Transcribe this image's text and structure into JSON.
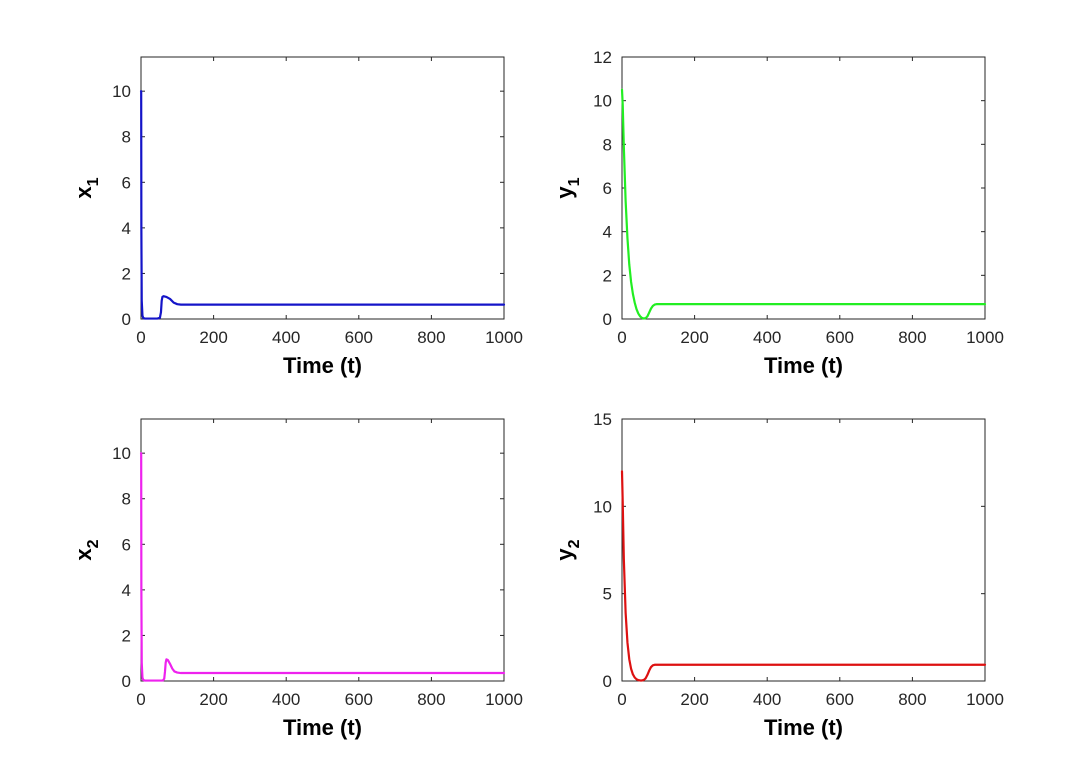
{
  "chart_data": [
    {
      "type": "line",
      "xlabel": "Time (t)",
      "ylabel": "x",
      "ylabel_sub": "1",
      "xlim": [
        0,
        1000
      ],
      "ylim": [
        0,
        11.5
      ],
      "xticks": [
        "0",
        "200",
        "400",
        "600",
        "800",
        "1000"
      ],
      "yticks": [
        "0",
        "2",
        "4",
        "6",
        "8",
        "10"
      ],
      "color": "#1414c8",
      "series": [
        {
          "x": [
            0,
            0.5,
            1,
            2,
            4,
            6,
            10,
            20,
            30,
            45,
            52,
            55,
            57,
            59,
            62,
            70,
            80,
            90,
            100,
            110,
            150,
            200,
            400,
            600,
            800,
            1000
          ],
          "y": [
            10.0,
            10.0,
            4.0,
            0.8,
            0.15,
            0.05,
            0.02,
            0.02,
            0.02,
            0.02,
            0.05,
            0.3,
            0.8,
            0.97,
            1.0,
            0.97,
            0.88,
            0.72,
            0.65,
            0.63,
            0.63,
            0.63,
            0.63,
            0.63,
            0.63,
            0.63
          ]
        }
      ]
    },
    {
      "type": "line",
      "xlabel": "Time (t)",
      "ylabel": "y",
      "ylabel_sub": "1",
      "xlim": [
        0,
        1000
      ],
      "ylim": [
        0,
        12
      ],
      "xticks": [
        "0",
        "200",
        "400",
        "600",
        "800",
        "1000"
      ],
      "yticks": [
        "0",
        "2",
        "4",
        "6",
        "8",
        "10",
        "12"
      ],
      "color": "#22ee22",
      "series": [
        {
          "x": [
            0,
            2,
            5,
            10,
            15,
            20,
            25,
            30,
            35,
            40,
            45,
            50,
            55,
            60,
            65,
            70,
            75,
            80,
            85,
            90,
            95,
            100,
            110,
            130,
            200,
            400,
            600,
            800,
            1000
          ],
          "y": [
            10.5,
            9.8,
            7.9,
            5.4,
            3.7,
            2.5,
            1.7,
            1.15,
            0.75,
            0.45,
            0.25,
            0.12,
            0.05,
            0.02,
            0.04,
            0.12,
            0.3,
            0.48,
            0.6,
            0.66,
            0.68,
            0.68,
            0.68,
            0.68,
            0.68,
            0.68,
            0.68,
            0.68,
            0.68
          ]
        }
      ]
    },
    {
      "type": "line",
      "xlabel": "Time (t)",
      "ylabel": "x",
      "ylabel_sub": "2",
      "xlim": [
        0,
        1000
      ],
      "ylim": [
        0,
        11.5
      ],
      "xticks": [
        "0",
        "200",
        "400",
        "600",
        "800",
        "1000"
      ],
      "yticks": [
        "0",
        "2",
        "4",
        "6",
        "8",
        "10"
      ],
      "color": "#ee22ee",
      "series": [
        {
          "x": [
            0,
            0.5,
            1,
            2,
            4,
            6,
            10,
            20,
            40,
            60,
            64,
            66,
            68,
            70,
            74,
            80,
            86,
            92,
            100,
            110,
            150,
            200,
            400,
            600,
            800,
            1000
          ],
          "y": [
            10.0,
            10.0,
            4.0,
            0.8,
            0.15,
            0.05,
            0.02,
            0.02,
            0.02,
            0.02,
            0.1,
            0.4,
            0.8,
            0.95,
            0.92,
            0.75,
            0.55,
            0.42,
            0.37,
            0.35,
            0.35,
            0.35,
            0.35,
            0.35,
            0.35,
            0.35
          ]
        }
      ]
    },
    {
      "type": "line",
      "xlabel": "Time (t)",
      "ylabel": "y",
      "ylabel_sub": "2",
      "xlim": [
        0,
        1000
      ],
      "ylim": [
        0,
        15
      ],
      "xticks": [
        "0",
        "200",
        "400",
        "600",
        "800",
        "1000"
      ],
      "yticks": [
        "0",
        "5",
        "10",
        "15"
      ],
      "color": "#dd1111",
      "series": [
        {
          "x": [
            0,
            2,
            5,
            10,
            15,
            20,
            25,
            30,
            35,
            40,
            45,
            50,
            55,
            60,
            65,
            70,
            75,
            80,
            85,
            90,
            95,
            100,
            120,
            200,
            400,
            600,
            800,
            1000
          ],
          "y": [
            12.0,
            10.2,
            7.0,
            3.9,
            2.2,
            1.25,
            0.7,
            0.38,
            0.2,
            0.1,
            0.05,
            0.03,
            0.03,
            0.06,
            0.15,
            0.35,
            0.6,
            0.8,
            0.9,
            0.93,
            0.93,
            0.93,
            0.93,
            0.93,
            0.93,
            0.93,
            0.93,
            0.93
          ]
        }
      ]
    }
  ]
}
